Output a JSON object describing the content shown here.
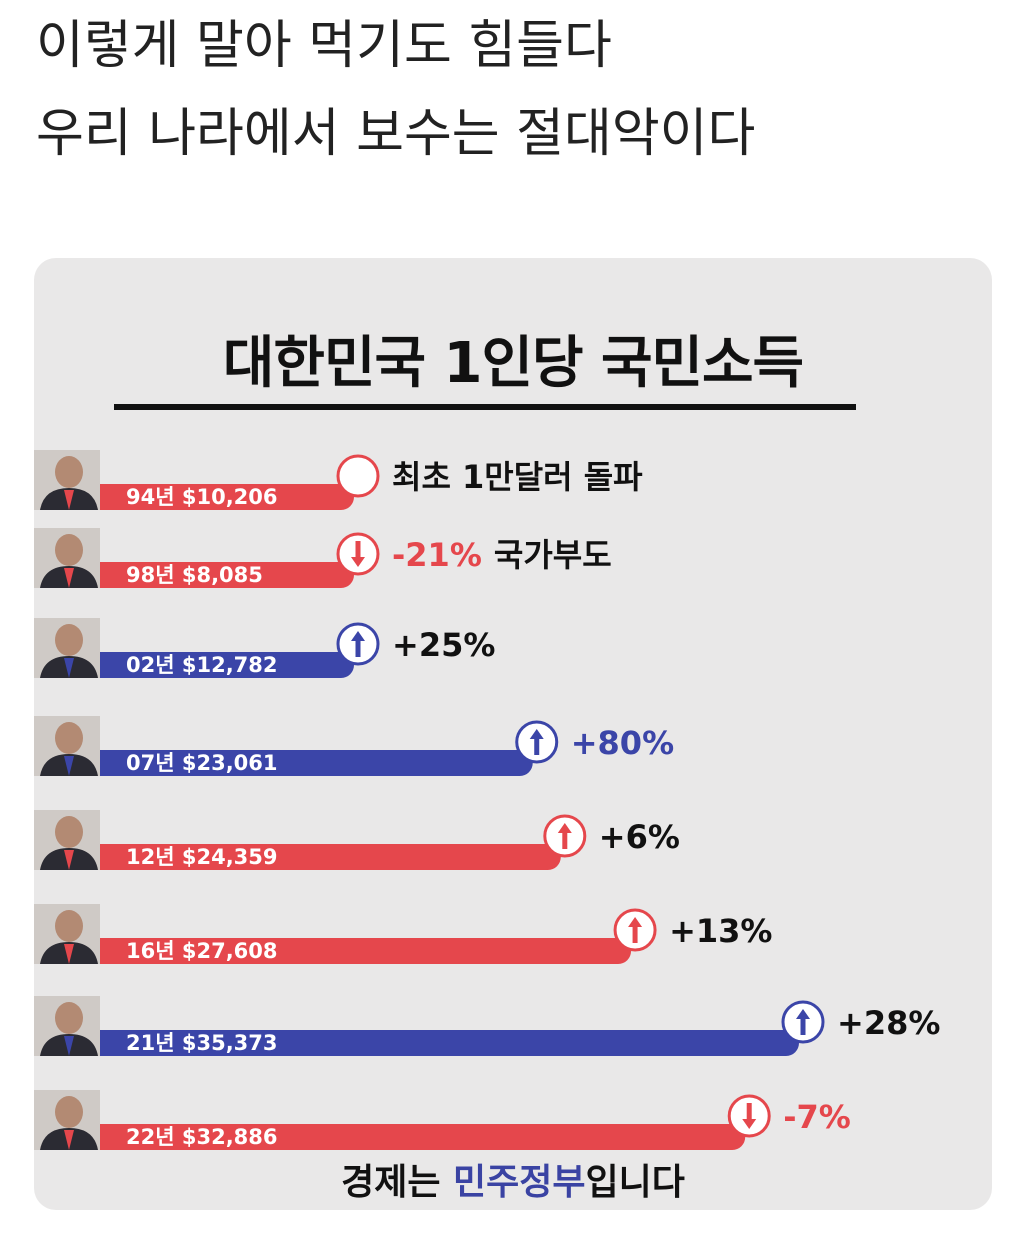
{
  "post": {
    "line1": "이렇게 말아 먹기도 힘들다",
    "line2": "우리 나라에서 보수는 절대악이다"
  },
  "infographic": {
    "footer_prefix": "경제는 ",
    "footer_highlight": "민주정부",
    "footer_suffix": "입니다"
  },
  "colors": {
    "conservative": "#e5474c",
    "democratic": "#3b45a8",
    "down_text": "#e5474c",
    "up_text": "#111111"
  },
  "chart_data": {
    "type": "bar",
    "orientation": "horizontal",
    "title": "대한민국 1인당 국민소득",
    "unit": "USD",
    "categories": [
      "94년",
      "98년",
      "02년",
      "07년",
      "12년",
      "16년",
      "21년",
      "22년"
    ],
    "values": [
      10206,
      8085,
      12782,
      23061,
      24359,
      27608,
      35373,
      32886
    ],
    "bar_labels": [
      "94년 $10,206",
      "98년 $8,085",
      "02년 $12,782",
      "07년 $23,061",
      "12년 $24,359",
      "16년 $27,608",
      "21년 $35,373",
      "22년 $32,886"
    ],
    "bar_colors": [
      "red",
      "red",
      "blue",
      "blue",
      "red",
      "red",
      "blue",
      "red"
    ],
    "change_indicator": [
      "none",
      "down",
      "up",
      "up",
      "up",
      "up",
      "up",
      "down"
    ],
    "annotations": [
      "최초 1만달러 돌파",
      "-21% 국가부도",
      "+25%",
      "+80%",
      "+6%",
      "+13%",
      "+28%",
      "-7%"
    ],
    "xlim": [
      0,
      35373
    ]
  }
}
